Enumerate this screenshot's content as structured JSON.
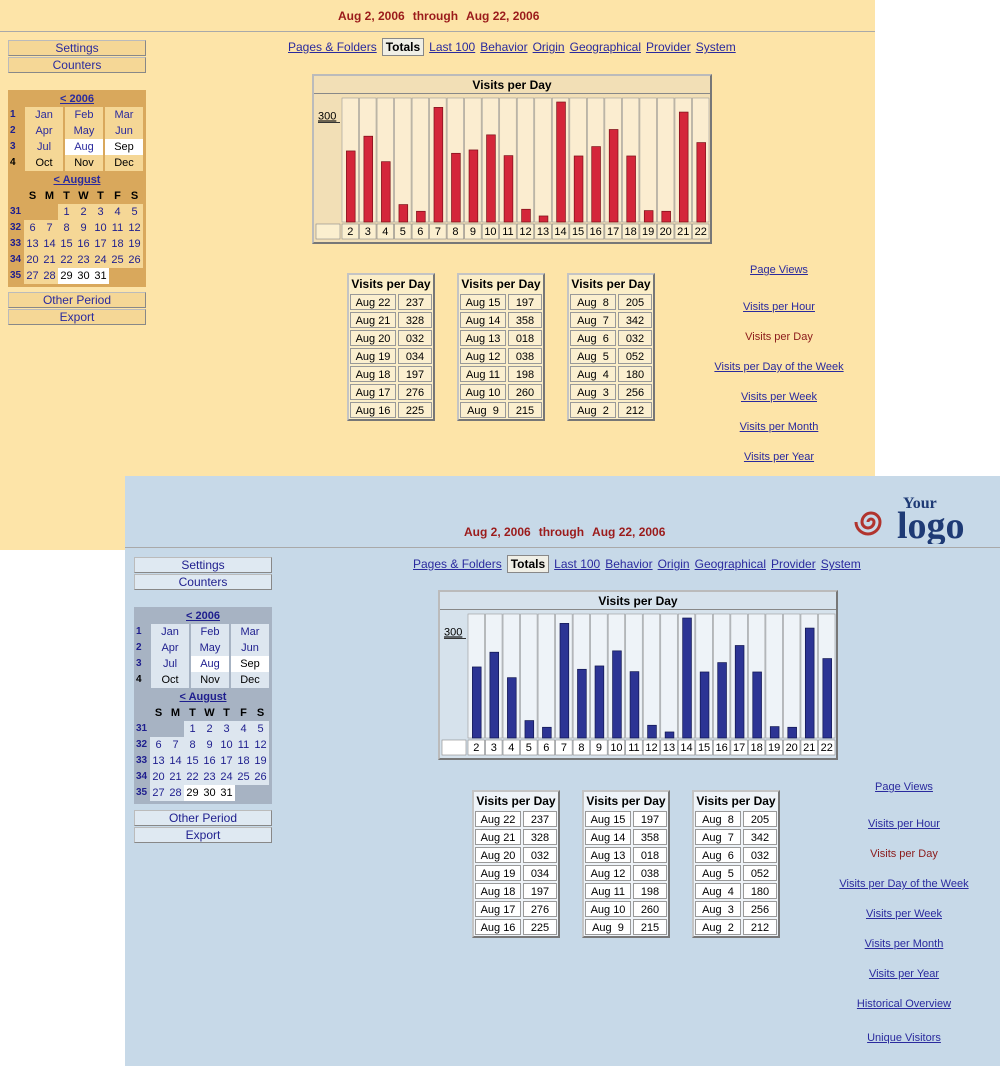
{
  "colors": {
    "back_bg": "#fde4a8",
    "front_bg": "#c7d9e8",
    "back_bar": "#d4263a",
    "front_bar": "#2c3494",
    "link": "#2a2a9e",
    "period": "#9b1b1b",
    "current_report": "#8b1a1a"
  },
  "period": {
    "start": "Aug 2, 2006",
    "through": "through",
    "end": "Aug 22, 2006"
  },
  "logo": {
    "text_small": "Your",
    "text_big": "logo"
  },
  "sidebar": {
    "settings": "Settings",
    "counters": "Counters",
    "other_period": "Other Period",
    "export": "Export"
  },
  "calendar": {
    "year_nav": "< 2006",
    "quarters": [
      {
        "num": "1",
        "months": [
          "Jan",
          "Feb",
          "Mar"
        ]
      },
      {
        "num": "2",
        "months": [
          "Apr",
          "May",
          "Jun"
        ]
      },
      {
        "num": "3",
        "months": [
          "Jul",
          "Aug",
          "Sep"
        ]
      },
      {
        "num": "4",
        "months": [
          "Oct",
          "Nov",
          "Dec"
        ]
      }
    ],
    "month_nav": "< August",
    "weekday_headers": [
      "S",
      "M",
      "T",
      "W",
      "T",
      "F",
      "S"
    ],
    "weeks": [
      {
        "num": "31",
        "days": [
          "",
          "",
          "1",
          "2",
          "3",
          "4",
          "5"
        ]
      },
      {
        "num": "32",
        "days": [
          "6",
          "7",
          "8",
          "9",
          "10",
          "11",
          "12"
        ]
      },
      {
        "num": "33",
        "days": [
          "13",
          "14",
          "15",
          "16",
          "17",
          "18",
          "19"
        ]
      },
      {
        "num": "34",
        "days": [
          "20",
          "21",
          "22",
          "23",
          "24",
          "25",
          "26"
        ]
      },
      {
        "num": "35",
        "days": [
          "27",
          "28",
          "29",
          "30",
          "31",
          "",
          ""
        ]
      }
    ]
  },
  "tabs": [
    "Pages & Folders",
    "Totals",
    "Last 100",
    "Behavior",
    "Origin",
    "Geographical",
    "Provider",
    "System"
  ],
  "active_tab": "Totals",
  "chart_data": {
    "type": "bar",
    "title": "Visits per Day",
    "y_tick": "300",
    "ylim": [
      0,
      370
    ],
    "categories": [
      "2",
      "3",
      "4",
      "5",
      "6",
      "7",
      "8",
      "9",
      "10",
      "11",
      "12",
      "13",
      "14",
      "15",
      "16",
      "17",
      "18",
      "19",
      "20",
      "21",
      "22"
    ],
    "values": [
      212,
      256,
      180,
      52,
      32,
      342,
      205,
      215,
      260,
      198,
      38,
      18,
      358,
      197,
      225,
      276,
      197,
      34,
      32,
      328,
      237
    ]
  },
  "tables": [
    {
      "title": "Visits per Day",
      "rows": [
        [
          "Aug 22",
          "237"
        ],
        [
          "Aug 21",
          "328"
        ],
        [
          "Aug 20",
          "032"
        ],
        [
          "Aug 19",
          "034"
        ],
        [
          "Aug 18",
          "197"
        ],
        [
          "Aug 17",
          "276"
        ],
        [
          "Aug 16",
          "225"
        ]
      ]
    },
    {
      "title": "Visits per Day",
      "rows": [
        [
          "Aug 15",
          "197"
        ],
        [
          "Aug 14",
          "358"
        ],
        [
          "Aug 13",
          "018"
        ],
        [
          "Aug 12",
          "038"
        ],
        [
          "Aug 11",
          "198"
        ],
        [
          "Aug 10",
          "260"
        ],
        [
          "Aug  9",
          "215"
        ]
      ]
    },
    {
      "title": "Visits per Day",
      "rows": [
        [
          "Aug  8",
          "205"
        ],
        [
          "Aug  7",
          "342"
        ],
        [
          "Aug  6",
          "032"
        ],
        [
          "Aug  5",
          "052"
        ],
        [
          "Aug  4",
          "180"
        ],
        [
          "Aug  3",
          "256"
        ],
        [
          "Aug  2",
          "212"
        ]
      ]
    }
  ],
  "reports": [
    "Page Views",
    "Visits per Hour",
    "Visits per Day",
    "Visits per Day of the Week",
    "Visits per Week",
    "Visits per Month",
    "Visits per Year",
    "Historical Overview",
    "Unique Visitors"
  ],
  "current_report": "Visits per Day"
}
